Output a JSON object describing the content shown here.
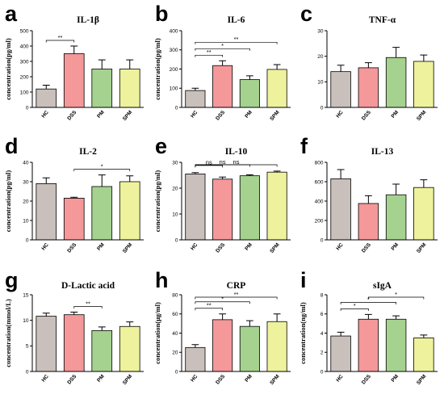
{
  "palette": {
    "HC": "#c9bfbb",
    "DSS": "#f4989a",
    "PM": "#a5d28f",
    "SPM": "#eef29c"
  },
  "chart_data": [
    {
      "letter": "a",
      "type": "bar",
      "title": "IL-1β",
      "ylabel": "concentration(pg/ml)",
      "categories": [
        "HC",
        "DSS",
        "PM",
        "SPM"
      ],
      "values": [
        120,
        350,
        250,
        250
      ],
      "errors": [
        25,
        50,
        60,
        60
      ],
      "ylim": [
        0,
        500
      ],
      "yticks": [
        "0",
        "100",
        "200",
        "300",
        "400",
        "500"
      ],
      "significance": [
        {
          "from": 0,
          "to": 1,
          "label": "**"
        }
      ]
    },
    {
      "letter": "b",
      "type": "bar",
      "title": "IL-6",
      "ylabel": "concentration(pg/ml)",
      "categories": [
        "HC",
        "DSS",
        "PM",
        "SPM"
      ],
      "values": [
        88,
        218,
        145,
        198
      ],
      "errors": [
        12,
        25,
        20,
        25
      ],
      "ylim": [
        0,
        400
      ],
      "yticks": [
        "0",
        "100",
        "200",
        "300",
        "400"
      ],
      "significance": [
        {
          "from": 0,
          "to": 1,
          "label": "**"
        },
        {
          "from": 0,
          "to": 2,
          "label": "*"
        },
        {
          "from": 0,
          "to": 3,
          "label": "**"
        }
      ]
    },
    {
      "letter": "c",
      "type": "bar",
      "title": "TNF-α",
      "ylabel": "",
      "categories": [
        "HC",
        "DSS",
        "PM",
        "SPM"
      ],
      "values": [
        14,
        15.5,
        19.5,
        18
      ],
      "errors": [
        2.5,
        2,
        4,
        2.5
      ],
      "ylim": [
        0,
        30
      ],
      "yticks": [
        "0",
        "10",
        "20",
        "30"
      ],
      "significance": []
    },
    {
      "letter": "d",
      "type": "bar",
      "title": "IL-2",
      "ylabel": "concentration(pg/ml)",
      "categories": [
        "HC",
        "DSS",
        "PM",
        "SPM"
      ],
      "values": [
        29,
        21.5,
        27.5,
        30
      ],
      "errors": [
        3,
        0.5,
        6,
        3
      ],
      "ylim": [
        0,
        40
      ],
      "yticks": [
        "0",
        "10",
        "20",
        "30",
        "40"
      ],
      "significance": [
        {
          "from": 1,
          "to": 3,
          "label": "*"
        }
      ]
    },
    {
      "letter": "e",
      "type": "bar",
      "title": "IL-10",
      "ylabel": "concentration(pg/ml)",
      "categories": [
        "HC",
        "DSS",
        "PM",
        "SPM"
      ],
      "values": [
        25.5,
        23.5,
        24.8,
        26.2
      ],
      "errors": [
        0.5,
        0.8,
        0.4,
        0.4
      ],
      "ylim": [
        0,
        30
      ],
      "yticks": [
        "0",
        "10",
        "20",
        "30"
      ],
      "significance": [
        {
          "from": 0,
          "to": 1,
          "label": "ns"
        },
        {
          "from": 0,
          "to": 2,
          "label": "ns"
        },
        {
          "from": 0,
          "to": 3,
          "label": "ns"
        }
      ]
    },
    {
      "letter": "f",
      "type": "bar",
      "title": "IL-13",
      "ylabel": "",
      "categories": [
        "HC",
        "DSS",
        "PM",
        "SPM"
      ],
      "values": [
        630,
        375,
        465,
        540
      ],
      "errors": [
        95,
        80,
        110,
        80
      ],
      "ylim": [
        0,
        800
      ],
      "yticks": [
        "0",
        "200",
        "400",
        "600",
        "800"
      ],
      "significance": []
    },
    {
      "letter": "g",
      "type": "bar",
      "title": "D-Lactic acid",
      "ylabel": "concentration(mmol/L)",
      "categories": [
        "HC",
        "DSS",
        "PM",
        "SPM"
      ],
      "values": [
        10.8,
        11.1,
        8,
        8.8
      ],
      "errors": [
        0.6,
        0.5,
        0.7,
        0.9
      ],
      "ylim": [
        0,
        15
      ],
      "yticks": [
        "0",
        "5",
        "10",
        "15"
      ],
      "significance": [
        {
          "from": 1,
          "to": 2,
          "label": "**"
        }
      ]
    },
    {
      "letter": "h",
      "type": "bar",
      "title": "CRP",
      "ylabel": "concentration(μg/ml)",
      "categories": [
        "HC",
        "DSS",
        "PM",
        "SPM"
      ],
      "values": [
        25,
        54,
        47,
        52
      ],
      "errors": [
        3,
        6,
        6,
        8
      ],
      "ylim": [
        0,
        80
      ],
      "yticks": [
        "0",
        "20",
        "40",
        "60",
        "80"
      ],
      "significance": [
        {
          "from": 0,
          "to": 1,
          "label": "**"
        },
        {
          "from": 0,
          "to": 2,
          "label": "*"
        },
        {
          "from": 0,
          "to": 3,
          "label": "**"
        }
      ]
    },
    {
      "letter": "i",
      "type": "bar",
      "title": "sIgA",
      "ylabel": "concentration(ng/ml)",
      "categories": [
        "HC",
        "DSS",
        "PM",
        "SPM"
      ],
      "values": [
        3.7,
        5.45,
        5.45,
        3.5
      ],
      "errors": [
        0.4,
        0.5,
        0.35,
        0.3
      ],
      "ylim": [
        0,
        8
      ],
      "yticks": [
        "0",
        "2",
        "4",
        "6",
        "8"
      ],
      "significance": [
        {
          "from": 0,
          "to": 1,
          "label": "*"
        },
        {
          "from": 0,
          "to": 2,
          "label": "*"
        },
        {
          "from": 1,
          "to": 3,
          "label": "*"
        }
      ]
    }
  ]
}
